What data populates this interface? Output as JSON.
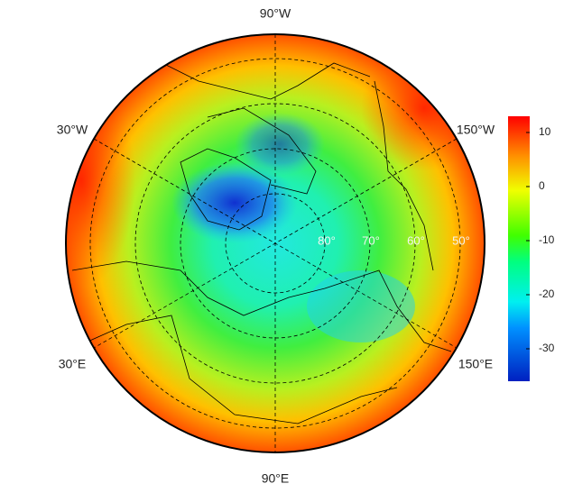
{
  "longitude_labels": {
    "top": "90°W",
    "upper_left": "30°W",
    "upper_right": "150°W",
    "lower_left": "30°E",
    "lower_right": "150°E",
    "bottom": "90°E"
  },
  "latitude_labels": [
    "80°",
    "70°",
    "60°",
    "50°"
  ],
  "colorbar": {
    "lim": [
      -36,
      13
    ],
    "ticks": [
      10,
      0,
      -10,
      -20,
      -30
    ]
  }
}
